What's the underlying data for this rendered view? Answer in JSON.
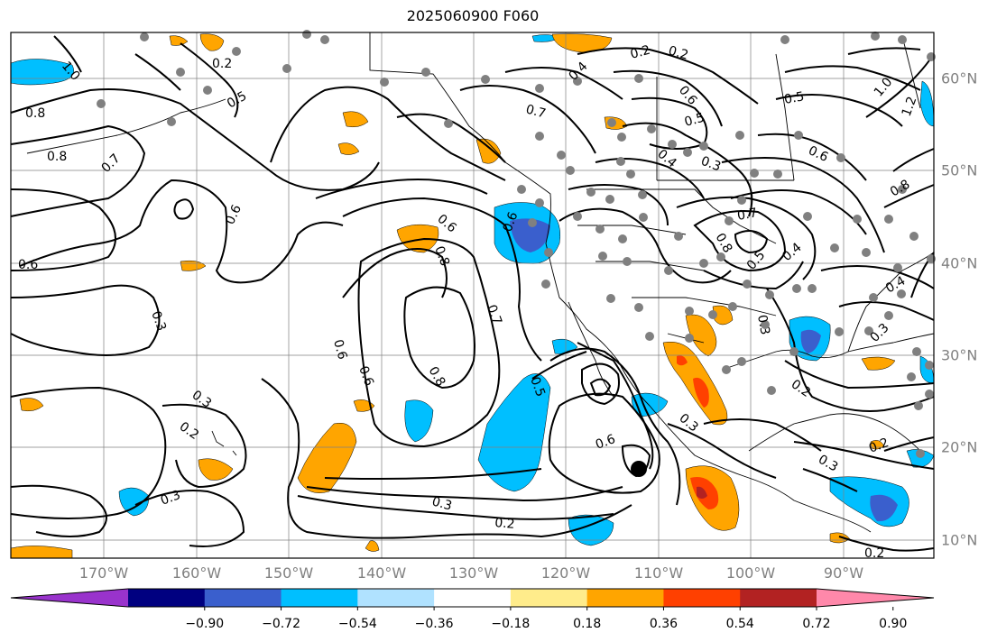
{
  "title": "2025060900 F060",
  "longitude_labels": [
    "170°W",
    "160°W",
    "150°W",
    "140°W",
    "130°W",
    "120°W",
    "110°W",
    "100°W",
    "90°W"
  ],
  "latitude_labels": [
    "60°N",
    "50°N",
    "40°N",
    "30°N",
    "20°N",
    "10°N"
  ],
  "contour_labels": [
    "1.0",
    "0.8",
    "0.8",
    "0.7",
    "0.6",
    "0.6",
    "0.3",
    "0.3",
    "0.2",
    "0.3",
    "0.2",
    "0.5",
    "0.6",
    "0.8",
    "0.7",
    "0.6",
    "0.8",
    "0.5",
    "0.6",
    "0.3",
    "0.2",
    "0.3",
    "0.2",
    "0.5",
    "0.6",
    "0.6",
    "0.4",
    "0.7",
    "0.2",
    "0.6",
    "0.5",
    "0.3",
    "0.4",
    "0.7",
    "0.8",
    "0.4",
    "0.5",
    "0.6",
    "1.0",
    "1.2",
    "0.8",
    "0.3",
    "0.2",
    "0.4",
    "0.2",
    "0.3",
    "0.2",
    "0.3"
  ],
  "colorbar": {
    "ticks": [
      "−0.90",
      "−0.72",
      "−0.54",
      "−0.36",
      "−0.18",
      "0.18",
      "0.36",
      "0.54",
      "0.72",
      "0.90"
    ],
    "colors": [
      "#9933cc",
      "#000080",
      "#3a5fcd",
      "#00bfff",
      "#b0e2ff",
      "#ffffff",
      "#ffec8b",
      "#ffa500",
      "#ff4000",
      "#b22222",
      "#ff88aa"
    ]
  },
  "palette": {
    "lightblue": "#00bfff",
    "midblue": "#3a5fcd",
    "orange": "#ffa500",
    "red": "#ff4000",
    "station": "#808080"
  },
  "marker": "storm-center"
}
